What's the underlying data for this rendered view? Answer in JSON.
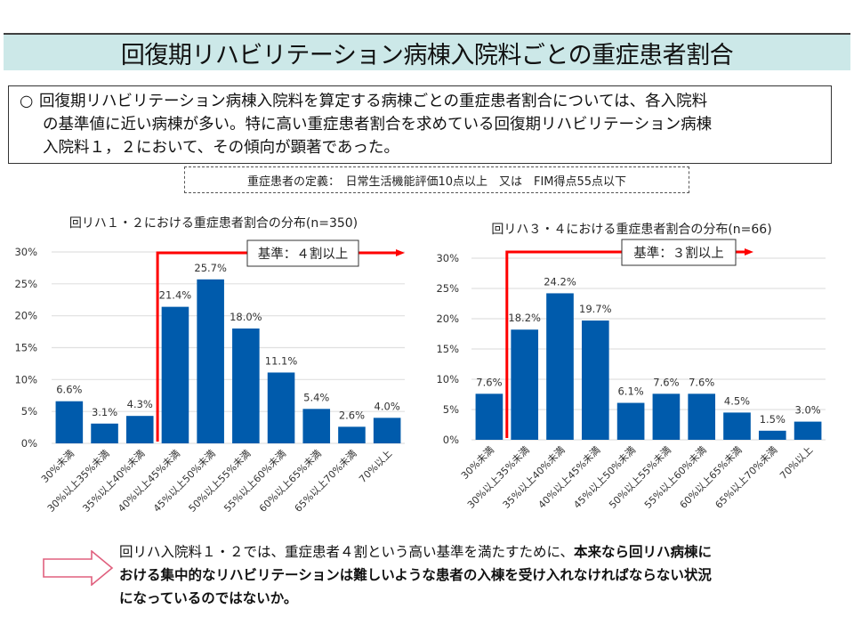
{
  "header": {
    "title": "回復期リハビリテーション病棟入院料ごとの重症患者割合"
  },
  "summary": {
    "bullet": "○",
    "lines": [
      "回復期リハビリテーション病棟入院料を算定する病棟ごとの重症患者割合については、各入院料",
      "の基準値に近い病棟が多い。特に高い重症患者割合を求めている回復期リハビリテーション病棟",
      "入院料１，２において、その傾向が顕著であった。"
    ]
  },
  "definition": {
    "text": "重症患者の定義：　日常生活機能評価10点以上　又は　FIM得点55点以下"
  },
  "colors": {
    "bar": "#005bac",
    "threshold_line": "#ff0000",
    "title_bg": "#cce8e8",
    "arrow_outline": "#e0607e",
    "gridline": "#e0e0e0"
  },
  "chart_data": [
    {
      "type": "bar",
      "title": "回リハ１・２における重症患者割合の分布(n=350)",
      "categories": [
        "30%未満",
        "30%以上35%未満",
        "35%以上40%未満",
        "40%以上45%未満",
        "45%以上50%未満",
        "50%以上55%未満",
        "55%以上60%未満",
        "60%以上65%未満",
        "65%以上70%未満",
        "70%以上"
      ],
      "values": [
        6.6,
        3.1,
        4.3,
        21.4,
        25.7,
        18.0,
        11.1,
        5.4,
        2.6,
        4.0
      ],
      "data_labels": [
        "6.6%",
        "3.1%",
        "4.3%",
        "21.4%",
        "25.7%",
        "18.0%",
        "11.1%",
        "5.4%",
        "2.6%",
        "4.0%"
      ],
      "yticks": [
        "0%",
        "5%",
        "10%",
        "15%",
        "20%",
        "25%",
        "30%"
      ],
      "ytick_values": [
        0,
        5,
        10,
        15,
        20,
        25,
        30
      ],
      "ylim": [
        0,
        30
      ],
      "xlabel": "",
      "ylabel": "",
      "grid": true,
      "threshold": {
        "label": "基準：４割以上",
        "after_category_index": 2
      }
    },
    {
      "type": "bar",
      "title": "回リハ３・４における重症患者割合の分布(n=66)",
      "categories": [
        "30%未満",
        "30%以上35%未満",
        "35%以上40%未満",
        "40%以上45%未満",
        "45%以上50%未満",
        "50%以上55%未満",
        "55%以上60%未満",
        "60%以上65%未満",
        "65%以上70%未満",
        "70%以上"
      ],
      "values": [
        7.6,
        18.2,
        24.2,
        19.7,
        6.1,
        7.6,
        7.6,
        4.5,
        1.5,
        3.0
      ],
      "data_labels": [
        "7.6%",
        "18.2%",
        "24.2%",
        "19.7%",
        "6.1%",
        "7.6%",
        "7.6%",
        "4.5%",
        "1.5%",
        "3.0%"
      ],
      "yticks": [
        "0%",
        "5%",
        "10%",
        "15%",
        "20%",
        "25%",
        "30%"
      ],
      "ytick_values": [
        0,
        5,
        10,
        15,
        20,
        25,
        30
      ],
      "ylim": [
        0,
        30
      ],
      "xlabel": "",
      "ylabel": "",
      "grid": true,
      "threshold": {
        "label": "基準：３割以上",
        "after_category_index": 0
      }
    }
  ],
  "conclusion": {
    "normal": "回リハ入院料１・２では、重症患者４割という高い基準を満たすために、",
    "bold_lines": [
      "本来なら回リハ病棟に",
      "おける集中的なリハビリテーションは難しいような患者の入棟を受け入れなければならない状況",
      "になっているのではないか。"
    ]
  }
}
